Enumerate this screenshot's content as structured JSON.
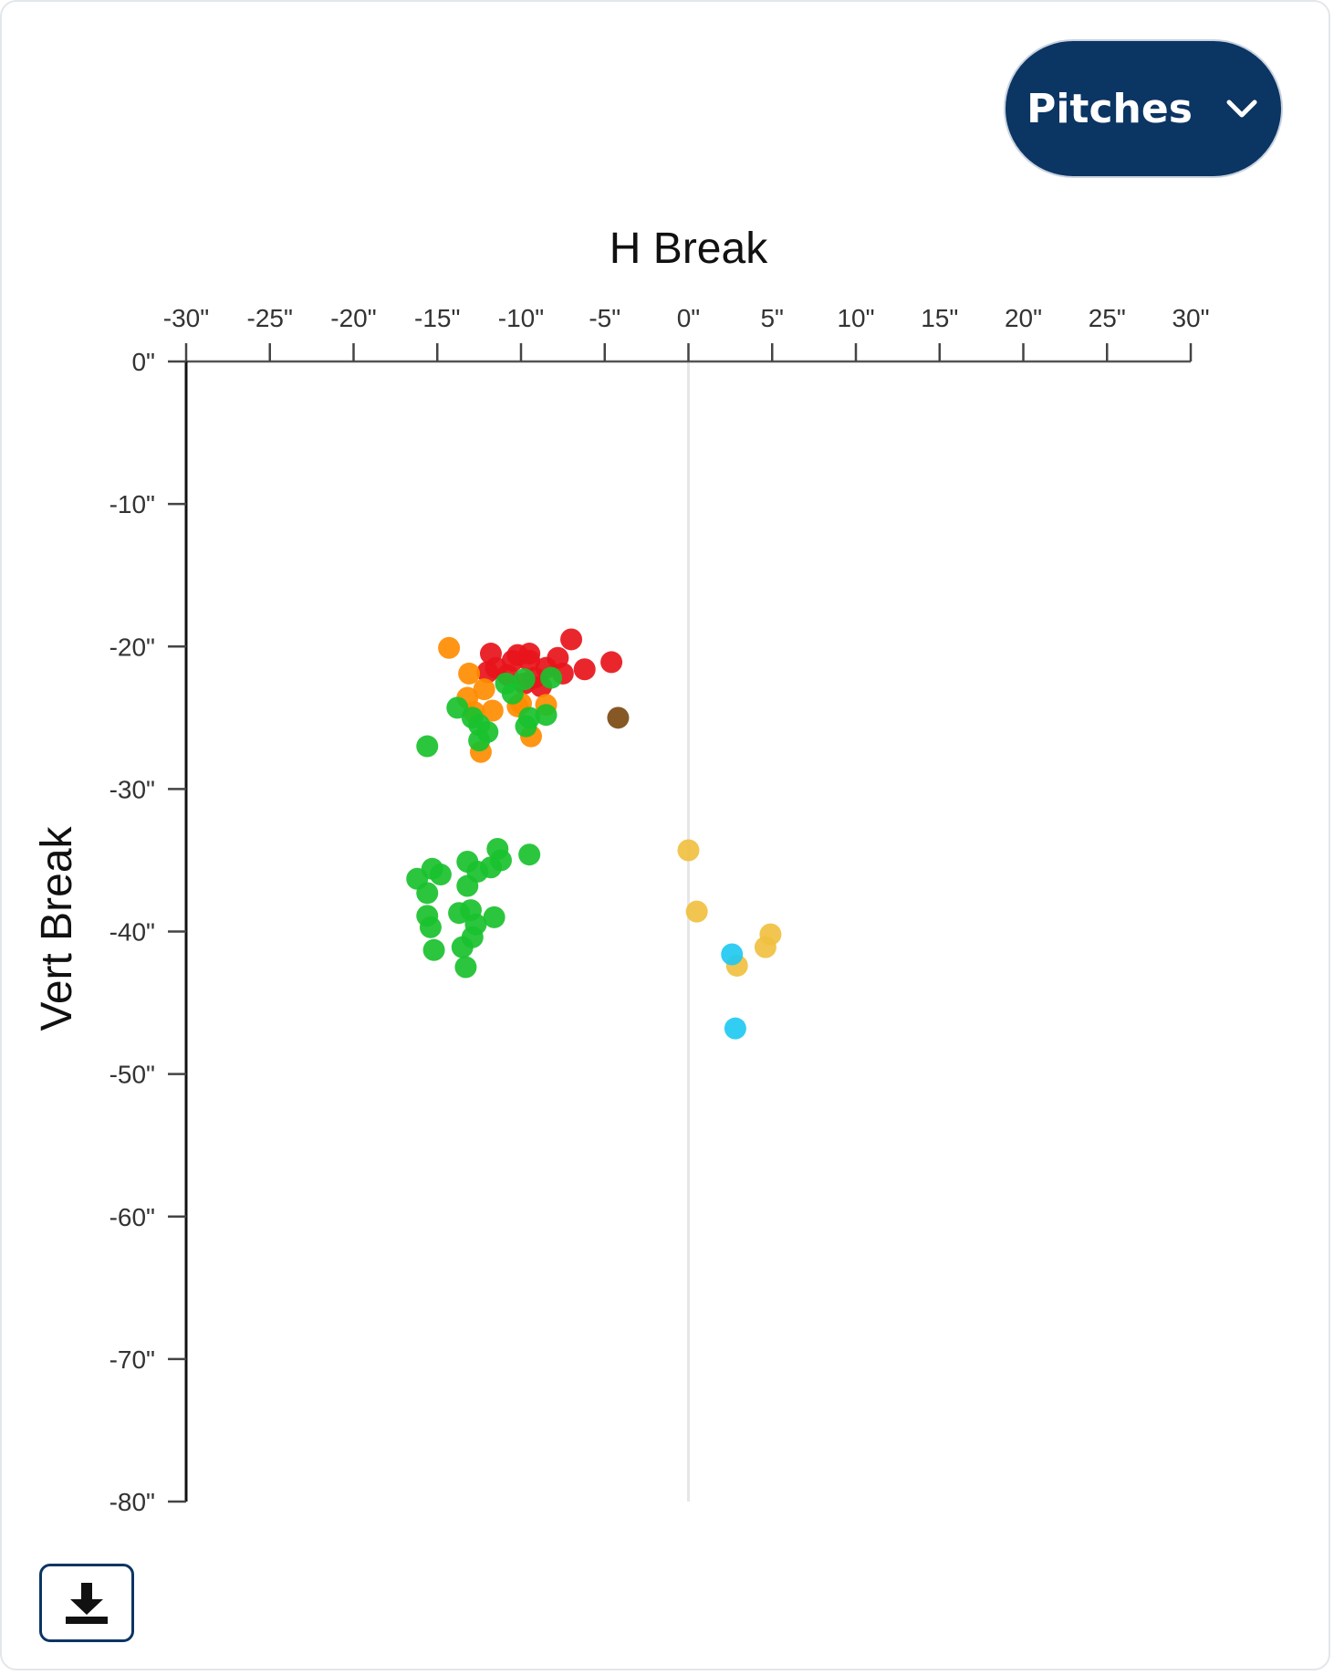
{
  "controls": {
    "pitches_label": "Pitches",
    "chevron_icon": "chevron-down-icon",
    "download_icon": "download-icon"
  },
  "chart_data": {
    "type": "scatter",
    "title": "",
    "xlabel": "H Break",
    "ylabel": "Vert Break",
    "xlim": [
      -30,
      30
    ],
    "ylim": [
      -80,
      0
    ],
    "x_ticks": [
      -30,
      -25,
      -20,
      -15,
      -10,
      -5,
      0,
      5,
      10,
      15,
      20,
      25,
      30
    ],
    "y_ticks": [
      0,
      -10,
      -20,
      -30,
      -40,
      -50,
      -60,
      -70,
      -80
    ],
    "x_tick_labels": [
      "-30\"",
      "-25\"",
      "-20\"",
      "-15\"",
      "-10\"",
      "-5\"",
      "0\"",
      "5\"",
      "10\"",
      "15\"",
      "20\"",
      "25\"",
      "30\""
    ],
    "y_tick_labels": [
      "0\"",
      "-10\"",
      "-20\"",
      "-30\"",
      "-40\"",
      "-50\"",
      "-60\"",
      "-70\"",
      "-80\""
    ],
    "x_axis_position": "top",
    "zero_reference_line": true,
    "grid": false,
    "series": [
      {
        "color": "#e8141b",
        "points": [
          [
            -11.8,
            -20.5
          ],
          [
            -10.5,
            -21.0
          ],
          [
            -9.5,
            -20.5
          ],
          [
            -8.5,
            -21.5
          ],
          [
            -7.0,
            -19.5
          ],
          [
            -4.6,
            -21.1
          ],
          [
            -6.2,
            -21.6
          ],
          [
            -7.8,
            -20.8
          ],
          [
            -9.2,
            -22.2
          ],
          [
            -10.8,
            -22.0
          ],
          [
            -9.8,
            -22.6
          ],
          [
            -8.8,
            -22.8
          ],
          [
            -11.5,
            -21.5
          ],
          [
            -12.0,
            -21.8
          ],
          [
            -7.5,
            -21.9
          ],
          [
            -9.5,
            -21.0
          ],
          [
            -10.2,
            -20.6
          ]
        ]
      },
      {
        "color": "#ff8c00",
        "points": [
          [
            -14.3,
            -20.1
          ],
          [
            -13.1,
            -21.9
          ],
          [
            -12.2,
            -23.0
          ],
          [
            -13.2,
            -23.6
          ],
          [
            -11.7,
            -24.5
          ],
          [
            -12.8,
            -24.6
          ],
          [
            -10.2,
            -24.2
          ],
          [
            -8.5,
            -24.1
          ],
          [
            -9.4,
            -26.3
          ],
          [
            -12.4,
            -27.4
          ],
          [
            -10.0,
            -24.0
          ]
        ]
      },
      {
        "color": "#19c12e",
        "points": [
          [
            -10.9,
            -22.6
          ],
          [
            -9.8,
            -22.3
          ],
          [
            -8.2,
            -22.2
          ],
          [
            -10.5,
            -23.3
          ],
          [
            -13.8,
            -24.3
          ],
          [
            -12.9,
            -25.0
          ],
          [
            -12.5,
            -25.5
          ],
          [
            -12.0,
            -26.0
          ],
          [
            -12.5,
            -26.6
          ],
          [
            -15.6,
            -27.0
          ],
          [
            -9.5,
            -25.0
          ],
          [
            -8.5,
            -24.8
          ],
          [
            -9.7,
            -25.6
          ],
          [
            -11.4,
            -34.2
          ],
          [
            -9.5,
            -34.6
          ],
          [
            -13.2,
            -35.1
          ],
          [
            -11.2,
            -35.0
          ],
          [
            -11.8,
            -35.5
          ],
          [
            -15.3,
            -35.6
          ],
          [
            -12.6,
            -35.8
          ],
          [
            -14.8,
            -36.0
          ],
          [
            -16.2,
            -36.3
          ],
          [
            -13.2,
            -36.8
          ],
          [
            -15.6,
            -37.3
          ],
          [
            -13.7,
            -38.7
          ],
          [
            -13.0,
            -38.5
          ],
          [
            -11.6,
            -39.0
          ],
          [
            -12.7,
            -39.5
          ],
          [
            -15.6,
            -38.9
          ],
          [
            -15.4,
            -39.7
          ],
          [
            -12.9,
            -40.4
          ],
          [
            -13.5,
            -41.1
          ],
          [
            -15.2,
            -41.3
          ],
          [
            -13.3,
            -42.5
          ]
        ]
      },
      {
        "color": "#7b4a12",
        "points": [
          [
            -4.2,
            -25.0
          ]
        ]
      },
      {
        "color": "#f0c040",
        "points": [
          [
            0.0,
            -34.3
          ],
          [
            0.5,
            -38.6
          ],
          [
            4.9,
            -40.2
          ],
          [
            4.6,
            -41.1
          ],
          [
            2.9,
            -42.4
          ]
        ]
      },
      {
        "color": "#21c9f2",
        "points": [
          [
            2.6,
            -41.6
          ],
          [
            2.8,
            -46.8
          ]
        ]
      }
    ]
  }
}
